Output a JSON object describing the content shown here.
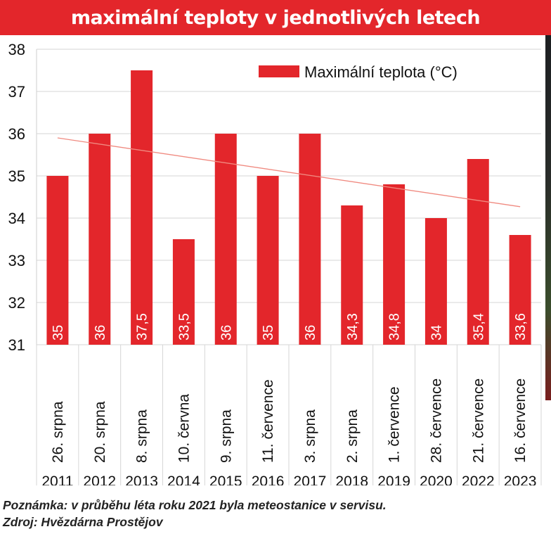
{
  "header": {
    "title": "maximální teploty v jednotlivých letech"
  },
  "chart_data": {
    "type": "bar",
    "categories": [
      "2011",
      "2012",
      "2013",
      "2014",
      "2015",
      "2016",
      "2017",
      "2018",
      "2019",
      "2020",
      "2022",
      "2023"
    ],
    "dates": [
      "26. srpna",
      "20. srpna",
      "8. srpna",
      "10. června",
      "9. srpna",
      "11. července",
      "3. srpna",
      "2. srpna",
      "1. července",
      "28. července",
      "21. července",
      "16. července"
    ],
    "series": [
      {
        "name": "Maximální teplota (°C)",
        "values": [
          35,
          36,
          37.5,
          33.5,
          36,
          35,
          36,
          34.3,
          34.8,
          34,
          35.4,
          33.6
        ],
        "labels": [
          "35",
          "36",
          "37,5",
          "33,5",
          "36",
          "35",
          "36",
          "34,3",
          "34,8",
          "34",
          "35,4",
          "33,6"
        ],
        "color": "#e3262b"
      }
    ],
    "trendline": {
      "start": 35.9,
      "end": 34.27,
      "color": "#f08a80"
    },
    "ylim": [
      31,
      38
    ],
    "yticks": [
      "31",
      "32",
      "33",
      "34",
      "35",
      "36",
      "37",
      "38"
    ],
    "grid": "horizontal",
    "legend": "top-right",
    "xlabel": "",
    "ylabel": ""
  },
  "footer": {
    "note": "Poznámka: v průběhu léta roku 2021 byla meteostanice v servisu.",
    "source": "Zdroj: Hvězdárna Prostějov"
  }
}
